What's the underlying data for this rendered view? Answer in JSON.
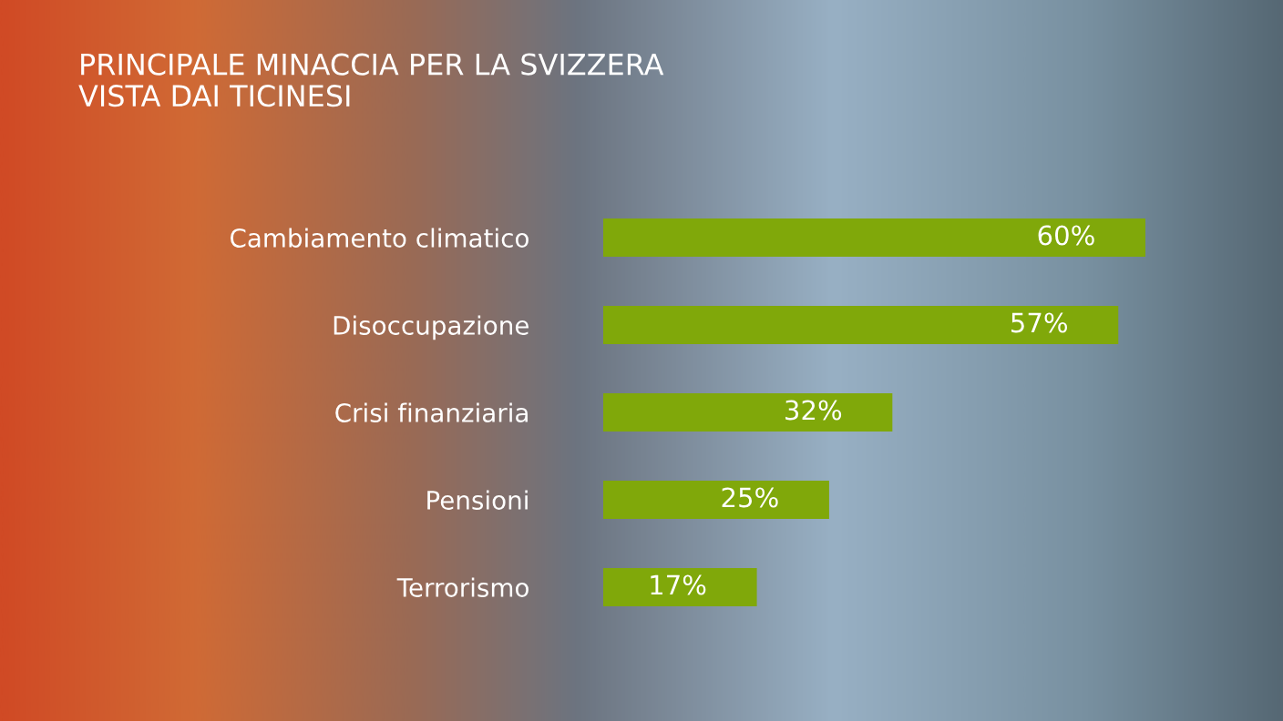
{
  "chart_data": {
    "type": "bar",
    "orientation": "horizontal",
    "title": "PRINCIPALE MINACCIA PER LA SVIZZERA\nVISTA DAI TICINESI",
    "categories": [
      "Cambiamento climatico",
      "Disoccupazione",
      "Crisi finanziaria",
      "Pensioni",
      "Terrorismo"
    ],
    "values": [
      60,
      57,
      32,
      25,
      17
    ],
    "value_labels": [
      "60%",
      "57%",
      "32%",
      "25%",
      "17%"
    ],
    "color": "#80a80a",
    "tick_labels": "y"
  }
}
